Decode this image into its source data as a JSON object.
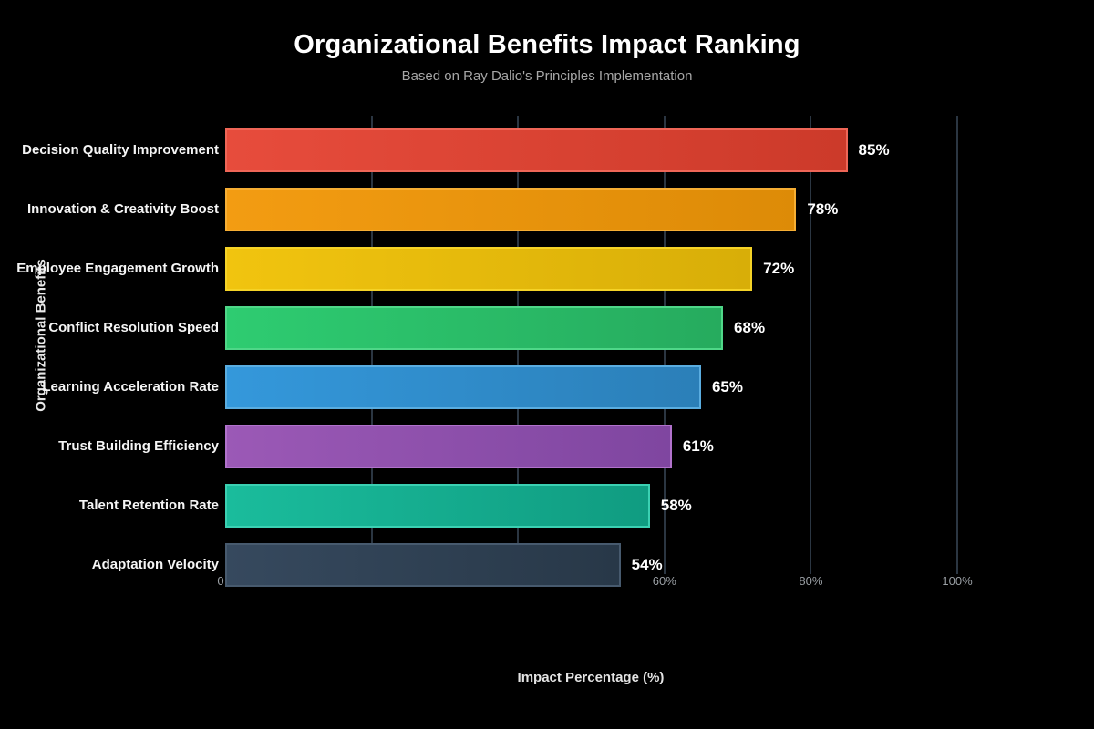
{
  "background_color": "#000000",
  "chart_data": {
    "type": "bar",
    "orientation": "horizontal",
    "title": "Organizational Benefits Impact Ranking",
    "subtitle": "Based on Ray Dalio's Principles Implementation",
    "xlabel": "Impact Percentage (%)",
    "ylabel": "Organizational Benefits",
    "categories": [
      "Decision Quality Improvement",
      "Innovation & Creativity Boost",
      "Employee Engagement Growth",
      "Conflict Resolution Speed",
      "Learning Acceleration Rate",
      "Trust Building Efficiency",
      "Talent Retention Rate",
      "Adaptation Velocity"
    ],
    "values": [
      85,
      78,
      72,
      68,
      65,
      61,
      58,
      54
    ],
    "value_labels": [
      "85%",
      "78%",
      "72%",
      "68%",
      "65%",
      "61%",
      "58%",
      "54%"
    ],
    "xlim": [
      0,
      113
    ],
    "grid": true,
    "legend": "none",
    "gridline_positions_pct": [
      20,
      40,
      60,
      80,
      100
    ],
    "gridline_color": "#2b3642",
    "x_ticks_visible": [
      {
        "label": "0",
        "pct": 0
      },
      {
        "label": "60%",
        "pct": 60
      },
      {
        "label": "80%",
        "pct": 80
      },
      {
        "label": "100%",
        "pct": 100
      }
    ],
    "bar_styles": [
      {
        "fill_left": "#e74c3c",
        "fill_right": "#cc3a2a",
        "border": "#ef6657"
      },
      {
        "fill_left": "#f39c12",
        "fill_right": "#dd8b07",
        "border": "#f6ae34"
      },
      {
        "fill_left": "#f1c40f",
        "fill_right": "#d8ae08",
        "border": "#f5d327"
      },
      {
        "fill_left": "#2ecc71",
        "fill_right": "#26ab5e",
        "border": "#4fd788"
      },
      {
        "fill_left": "#3498db",
        "fill_right": "#2b7fb8",
        "border": "#5aade0"
      },
      {
        "fill_left": "#9b59b6",
        "fill_right": "#7f46a0",
        "border": "#b172cc"
      },
      {
        "fill_left": "#1abc9c",
        "fill_right": "#109c81",
        "border": "#3bd0b2"
      },
      {
        "fill_left": "#36495e",
        "fill_right": "#283848",
        "border": "#475a6e"
      }
    ],
    "text_colors": {
      "title": "#ffffff",
      "subtitle": "#a6a6a6",
      "category_labels": "#f5f5f5",
      "value_labels": "#ffffff",
      "tick_labels": "#9a9fa4",
      "axis_titles": "#e3e3e3"
    }
  }
}
